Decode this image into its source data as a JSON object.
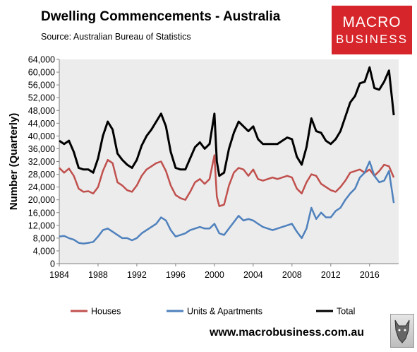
{
  "header": {
    "title": "Dwelling Commencements - Australia",
    "subtitle": "Source: Australian Bureau of Statistics"
  },
  "logo": {
    "line1": "MACRO",
    "line2": "BUSINESS"
  },
  "footer": {
    "website": "www.macrobusiness.com.au",
    "mascot_icon": "wolf-head-icon"
  },
  "colors": {
    "houses": "#c0504d",
    "units": "#4f81bd",
    "total": "#000000",
    "plot_background": "#ececec",
    "logo_background": "#d7262b"
  },
  "chart_data": {
    "type": "line",
    "title": "Dwelling Commencements - Australia",
    "subtitle": "Source: Australian Bureau of Statistics",
    "xlabel": "",
    "ylabel": "Number (Quarterly)",
    "xlim": [
      1984,
      2019
    ],
    "ylim": [
      0,
      64000
    ],
    "x_ticks": [
      1984,
      1988,
      1992,
      1996,
      2000,
      2004,
      2008,
      2012,
      2016
    ],
    "y_ticks": [
      0,
      4000,
      8000,
      12000,
      16000,
      20000,
      24000,
      28000,
      32000,
      36000,
      40000,
      44000,
      48000,
      52000,
      56000,
      60000,
      64000
    ],
    "y_tick_labels": [
      "0",
      "4,000",
      "8,000",
      "12,000",
      "16,000",
      "20,000",
      "24,000",
      "28,000",
      "32,000",
      "36,000",
      "40,000",
      "44,000",
      "48,000",
      "52,000",
      "56,000",
      "60,000",
      "64,000"
    ],
    "grid": false,
    "legend_position": "bottom",
    "series": [
      {
        "name": "Houses",
        "color": "#c0504d",
        "points": [
          [
            1984.0,
            30000
          ],
          [
            1984.5,
            28500
          ],
          [
            1985.0,
            29800
          ],
          [
            1985.5,
            27500
          ],
          [
            1986.0,
            23500
          ],
          [
            1986.5,
            22500
          ],
          [
            1987.0,
            22700
          ],
          [
            1987.5,
            22000
          ],
          [
            1988.0,
            24000
          ],
          [
            1988.5,
            29000
          ],
          [
            1989.0,
            32500
          ],
          [
            1989.5,
            31500
          ],
          [
            1990.0,
            25500
          ],
          [
            1990.5,
            24500
          ],
          [
            1991.0,
            23000
          ],
          [
            1991.5,
            22500
          ],
          [
            1992.0,
            24500
          ],
          [
            1992.5,
            27500
          ],
          [
            1993.0,
            29500
          ],
          [
            1993.5,
            30500
          ],
          [
            1994.0,
            31500
          ],
          [
            1994.5,
            32000
          ],
          [
            1995.0,
            29000
          ],
          [
            1995.5,
            24500
          ],
          [
            1996.0,
            21500
          ],
          [
            1996.5,
            20500
          ],
          [
            1997.0,
            20000
          ],
          [
            1997.5,
            22500
          ],
          [
            1998.0,
            25500
          ],
          [
            1998.5,
            26500
          ],
          [
            1999.0,
            25000
          ],
          [
            1999.5,
            26500
          ],
          [
            2000.0,
            34000
          ],
          [
            2000.25,
            21000
          ],
          [
            2000.5,
            18000
          ],
          [
            2001.0,
            18500
          ],
          [
            2001.5,
            24500
          ],
          [
            2002.0,
            28500
          ],
          [
            2002.5,
            30000
          ],
          [
            2003.0,
            29500
          ],
          [
            2003.5,
            27500
          ],
          [
            2004.0,
            29500
          ],
          [
            2004.5,
            26500
          ],
          [
            2005.0,
            26000
          ],
          [
            2005.5,
            26500
          ],
          [
            2006.0,
            27000
          ],
          [
            2006.5,
            26500
          ],
          [
            2007.0,
            27000
          ],
          [
            2007.5,
            27500
          ],
          [
            2008.0,
            27000
          ],
          [
            2008.5,
            23500
          ],
          [
            2009.0,
            22000
          ],
          [
            2009.5,
            25500
          ],
          [
            2010.0,
            28000
          ],
          [
            2010.5,
            27500
          ],
          [
            2011.0,
            25000
          ],
          [
            2011.5,
            24000
          ],
          [
            2012.0,
            23000
          ],
          [
            2012.5,
            22500
          ],
          [
            2013.0,
            24000
          ],
          [
            2013.5,
            26000
          ],
          [
            2014.0,
            28500
          ],
          [
            2014.5,
            29000
          ],
          [
            2015.0,
            29500
          ],
          [
            2015.5,
            28500
          ],
          [
            2016.0,
            29500
          ],
          [
            2016.5,
            27500
          ],
          [
            2017.0,
            29000
          ],
          [
            2017.5,
            31000
          ],
          [
            2018.0,
            30500
          ],
          [
            2018.5,
            27000
          ]
        ]
      },
      {
        "name": "Units & Apartments",
        "color": "#4f81bd",
        "points": [
          [
            1984.0,
            8500
          ],
          [
            1984.5,
            8700
          ],
          [
            1985.0,
            8000
          ],
          [
            1985.5,
            7500
          ],
          [
            1986.0,
            6500
          ],
          [
            1986.5,
            6300
          ],
          [
            1987.0,
            6500
          ],
          [
            1987.5,
            6800
          ],
          [
            1988.0,
            8500
          ],
          [
            1988.5,
            10500
          ],
          [
            1989.0,
            11000
          ],
          [
            1989.5,
            10000
          ],
          [
            1990.0,
            9000
          ],
          [
            1990.5,
            8000
          ],
          [
            1991.0,
            8000
          ],
          [
            1991.5,
            7300
          ],
          [
            1992.0,
            8000
          ],
          [
            1992.5,
            9500
          ],
          [
            1993.0,
            10500
          ],
          [
            1993.5,
            11500
          ],
          [
            1994.0,
            12500
          ],
          [
            1994.5,
            14500
          ],
          [
            1995.0,
            13500
          ],
          [
            1995.5,
            10500
          ],
          [
            1996.0,
            8500
          ],
          [
            1996.5,
            9000
          ],
          [
            1997.0,
            9500
          ],
          [
            1997.5,
            10500
          ],
          [
            1998.0,
            11000
          ],
          [
            1998.5,
            11500
          ],
          [
            1999.0,
            11000
          ],
          [
            1999.5,
            11000
          ],
          [
            2000.0,
            12500
          ],
          [
            2000.5,
            9500
          ],
          [
            2001.0,
            9000
          ],
          [
            2001.5,
            11000
          ],
          [
            2002.0,
            13000
          ],
          [
            2002.5,
            15000
          ],
          [
            2003.0,
            13500
          ],
          [
            2003.5,
            14000
          ],
          [
            2004.0,
            13500
          ],
          [
            2004.5,
            12500
          ],
          [
            2005.0,
            11500
          ],
          [
            2005.5,
            11000
          ],
          [
            2006.0,
            10500
          ],
          [
            2006.5,
            11000
          ],
          [
            2007.0,
            11500
          ],
          [
            2007.5,
            12000
          ],
          [
            2008.0,
            12500
          ],
          [
            2008.5,
            10000
          ],
          [
            2009.0,
            8000
          ],
          [
            2009.5,
            11000
          ],
          [
            2010.0,
            17500
          ],
          [
            2010.5,
            14000
          ],
          [
            2011.0,
            16000
          ],
          [
            2011.5,
            14500
          ],
          [
            2012.0,
            14500
          ],
          [
            2012.5,
            16500
          ],
          [
            2013.0,
            17500
          ],
          [
            2013.5,
            20000
          ],
          [
            2014.0,
            22000
          ],
          [
            2014.5,
            23500
          ],
          [
            2015.0,
            27000
          ],
          [
            2015.5,
            28500
          ],
          [
            2016.0,
            32000
          ],
          [
            2016.5,
            27500
          ],
          [
            2017.0,
            25500
          ],
          [
            2017.5,
            26000
          ],
          [
            2018.0,
            29000
          ],
          [
            2018.5,
            19000
          ]
        ]
      },
      {
        "name": "Total",
        "color": "#000000",
        "points": [
          [
            1984.0,
            38500
          ],
          [
            1984.5,
            37500
          ],
          [
            1985.0,
            38500
          ],
          [
            1985.5,
            35000
          ],
          [
            1986.0,
            30000
          ],
          [
            1986.5,
            29500
          ],
          [
            1987.0,
            29500
          ],
          [
            1987.5,
            28500
          ],
          [
            1988.0,
            33000
          ],
          [
            1988.5,
            40000
          ],
          [
            1989.0,
            44500
          ],
          [
            1989.5,
            42000
          ],
          [
            1990.0,
            34500
          ],
          [
            1990.5,
            32500
          ],
          [
            1991.0,
            31000
          ],
          [
            1991.5,
            30000
          ],
          [
            1992.0,
            32500
          ],
          [
            1992.5,
            37000
          ],
          [
            1993.0,
            40000
          ],
          [
            1993.5,
            42000
          ],
          [
            1994.0,
            44500
          ],
          [
            1994.5,
            47000
          ],
          [
            1995.0,
            43000
          ],
          [
            1995.5,
            35000
          ],
          [
            1996.0,
            30000
          ],
          [
            1996.5,
            29500
          ],
          [
            1997.0,
            29500
          ],
          [
            1997.5,
            33000
          ],
          [
            1998.0,
            36500
          ],
          [
            1998.5,
            38000
          ],
          [
            1999.0,
            36000
          ],
          [
            1999.5,
            37500
          ],
          [
            2000.0,
            47000
          ],
          [
            2000.25,
            32000
          ],
          [
            2000.5,
            27500
          ],
          [
            2001.0,
            28500
          ],
          [
            2001.5,
            36000
          ],
          [
            2002.0,
            41000
          ],
          [
            2002.5,
            44500
          ],
          [
            2003.0,
            43000
          ],
          [
            2003.5,
            41500
          ],
          [
            2004.0,
            43000
          ],
          [
            2004.5,
            39000
          ],
          [
            2005.0,
            37500
          ],
          [
            2005.5,
            37500
          ],
          [
            2006.0,
            37500
          ],
          [
            2006.5,
            37500
          ],
          [
            2007.0,
            38500
          ],
          [
            2007.5,
            39500
          ],
          [
            2008.0,
            39000
          ],
          [
            2008.5,
            33500
          ],
          [
            2009.0,
            31000
          ],
          [
            2009.5,
            36500
          ],
          [
            2010.0,
            45500
          ],
          [
            2010.5,
            41500
          ],
          [
            2011.0,
            41000
          ],
          [
            2011.5,
            38500
          ],
          [
            2012.0,
            37500
          ],
          [
            2012.5,
            39000
          ],
          [
            2013.0,
            41500
          ],
          [
            2013.5,
            46000
          ],
          [
            2014.0,
            50500
          ],
          [
            2014.5,
            52500
          ],
          [
            2015.0,
            56500
          ],
          [
            2015.5,
            57000
          ],
          [
            2016.0,
            61500
          ],
          [
            2016.5,
            55000
          ],
          [
            2017.0,
            54500
          ],
          [
            2017.5,
            57000
          ],
          [
            2018.0,
            60500
          ],
          [
            2018.5,
            46500
          ]
        ]
      }
    ]
  }
}
